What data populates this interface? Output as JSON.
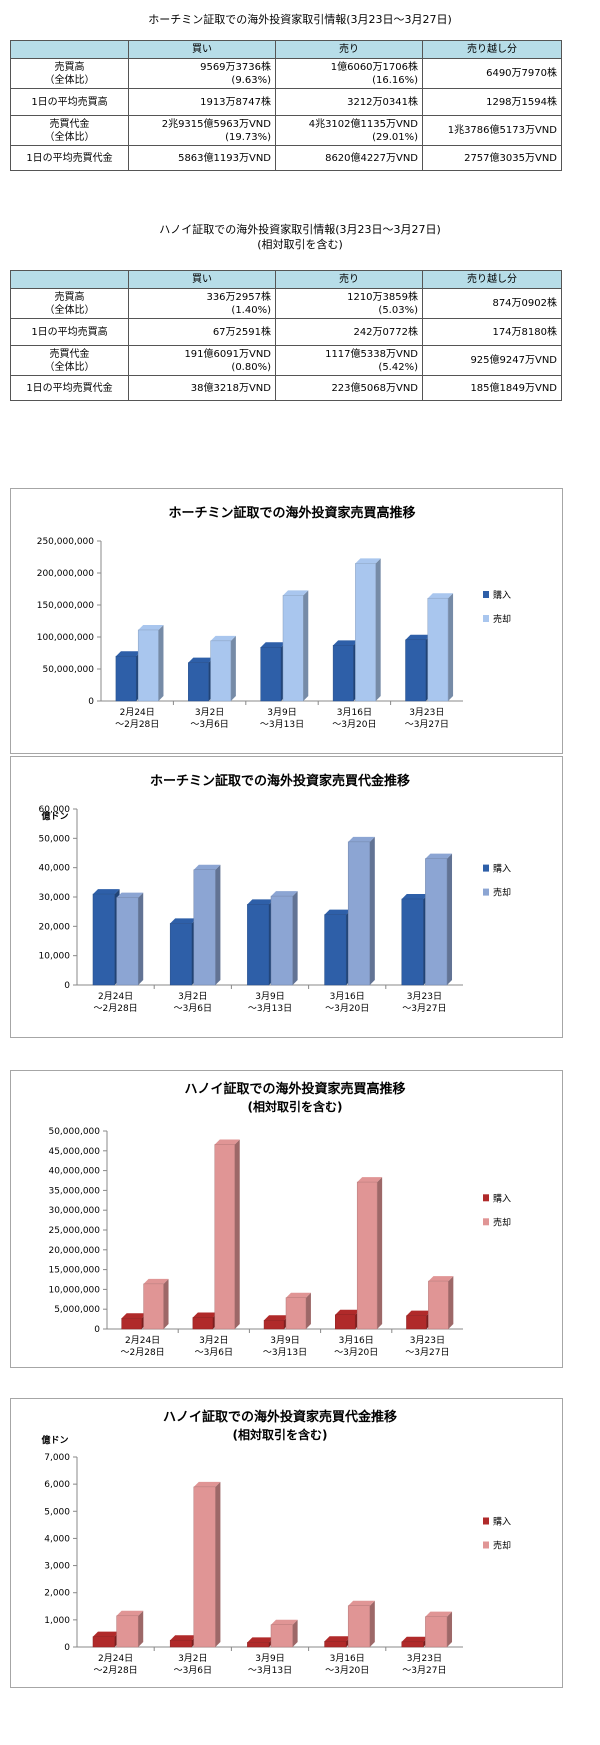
{
  "tables": [
    {
      "title": "ホーチミン証取での海外投資家取引情報(3月23日〜3月27日)",
      "headers": [
        "",
        "買い",
        "売り",
        "売り越し分"
      ],
      "rows": [
        {
          "label": [
            "売買高",
            "（全体比）"
          ],
          "buy": [
            "9569万3736株",
            "(9.63%)"
          ],
          "sell": [
            "1億6060万1706株",
            "(16.16%)"
          ],
          "net": "6490万7970株"
        },
        {
          "label": [
            "1日の平均売買高"
          ],
          "buy": [
            "1913万8747株"
          ],
          "sell": [
            "3212万0341株"
          ],
          "net": "1298万1594株"
        },
        {
          "label": [
            "売買代金",
            "（全体比）"
          ],
          "buy": [
            "2兆9315億5963万VND",
            "(19.73%)"
          ],
          "sell": [
            "4兆3102億1135万VND",
            "(29.01%)"
          ],
          "net": "1兆3786億5173万VND"
        },
        {
          "label": [
            "1日の平均売買代金"
          ],
          "buy": [
            "5863億1193万VND"
          ],
          "sell": [
            "8620億4227万VND"
          ],
          "net": "2757億3035万VND"
        }
      ]
    },
    {
      "title": "ハノイ証取での海外投資家取引情報(3月23日〜3月27日)",
      "subtitle": "(相対取引を含む)",
      "headers": [
        "",
        "買い",
        "売り",
        "売り越し分"
      ],
      "rows": [
        {
          "label": [
            "売買高",
            "（全体比）"
          ],
          "buy": [
            "336万2957株",
            "(1.40%)"
          ],
          "sell": [
            "1210万3859株",
            "(5.03%)"
          ],
          "net": "874万0902株"
        },
        {
          "label": [
            "1日の平均売買高"
          ],
          "buy": [
            "67万2591株"
          ],
          "sell": [
            "242万0772株"
          ],
          "net": "174万8180株"
        },
        {
          "label": [
            "売買代金",
            "（全体比）"
          ],
          "buy": [
            "191億6091万VND",
            "(0.80%)"
          ],
          "sell": [
            "1117億5338万VND",
            "(5.42%)"
          ],
          "net": "925億9247万VND"
        },
        {
          "label": [
            "1日の平均売買代金"
          ],
          "buy": [
            "38億3218万VND"
          ],
          "sell": [
            "223億5068万VND"
          ],
          "net": "185億1849万VND"
        }
      ]
    }
  ],
  "chart_data": [
    {
      "type": "bar",
      "title": "ホーチミン証取での海外投資家売買高推移",
      "subtitle": "",
      "ylabel": "",
      "categories": [
        [
          "2月24日",
          "〜2月28日"
        ],
        [
          "3月2日",
          "〜3月6日"
        ],
        [
          "3月9日",
          "〜3月13日"
        ],
        [
          "3月16日",
          "〜3月20日"
        ],
        [
          "3月23日",
          "〜3月27日"
        ]
      ],
      "series": [
        {
          "name": "購入",
          "values": [
            70000000,
            60000000,
            84000000,
            87000000,
            95693736
          ]
        },
        {
          "name": "売却",
          "values": [
            111000000,
            94000000,
            165000000,
            215000000,
            160601706
          ]
        }
      ],
      "ylim": [
        0,
        250000000
      ],
      "yticks": [
        "0",
        "50,000,000",
        "100,000,000",
        "150,000,000",
        "200,000,000",
        "250,000,000"
      ],
      "colors": [
        "#2e5fa8",
        "#a9c6ee"
      ],
      "legend": "right"
    },
    {
      "type": "bar",
      "title": "ホーチミン証取での海外投資家売買代金推移",
      "subtitle": "",
      "ylabel": "億ドン",
      "categories": [
        [
          "2月24日",
          "〜2月28日"
        ],
        [
          "3月2日",
          "〜3月6日"
        ],
        [
          "3月9日",
          "〜3月13日"
        ],
        [
          "3月16日",
          "〜3月20日"
        ],
        [
          "3月23日",
          "〜3月27日"
        ]
      ],
      "series": [
        {
          "name": "購入",
          "values": [
            31000,
            21000,
            27500,
            24000,
            29316
          ]
        },
        {
          "name": "売却",
          "values": [
            29800,
            39300,
            30300,
            48800,
            43102
          ]
        }
      ],
      "ylim": [
        0,
        60000
      ],
      "yticks": [
        "0",
        "10,000",
        "20,000",
        "30,000",
        "40,000",
        "50,000",
        "60,000"
      ],
      "colors": [
        "#2e5fa8",
        "#8ca5d3"
      ],
      "legend": "right"
    },
    {
      "type": "bar",
      "title": "ハノイ証取での海外投資家売買高推移",
      "subtitle": "(相対取引を含む)",
      "ylabel": "",
      "categories": [
        [
          "2月24日",
          "〜2月28日"
        ],
        [
          "3月2日",
          "〜3月6日"
        ],
        [
          "3月9日",
          "〜3月13日"
        ],
        [
          "3月16日",
          "〜3月20日"
        ],
        [
          "3月23日",
          "〜3月27日"
        ]
      ],
      "series": [
        {
          "name": "購入",
          "values": [
            2700000,
            2900000,
            2200000,
            3600000,
            3362957
          ]
        },
        {
          "name": "売却",
          "values": [
            11400000,
            46600000,
            7900000,
            37100000,
            12103859
          ]
        }
      ],
      "ylim": [
        0,
        50000000
      ],
      "yticks": [
        "0",
        "5,000,000",
        "10,000,000",
        "15,000,000",
        "20,000,000",
        "25,000,000",
        "30,000,000",
        "35,000,000",
        "40,000,000",
        "45,000,000",
        "50,000,000"
      ],
      "colors": [
        "#b02a2a",
        "#e09595"
      ],
      "legend": "right"
    },
    {
      "type": "bar",
      "title": "ハノイ証取での海外投資家売買代金推移",
      "subtitle": "(相対取引を含む)",
      "ylabel": "億ドン",
      "categories": [
        [
          "2月24日",
          "〜2月28日"
        ],
        [
          "3月2日",
          "〜3月6日"
        ],
        [
          "3月9日",
          "〜3月13日"
        ],
        [
          "3月16日",
          "〜3月20日"
        ],
        [
          "3月23日",
          "〜3月27日"
        ]
      ],
      "series": [
        {
          "name": "購入",
          "values": [
            380,
            250,
            170,
            210,
            192
          ]
        },
        {
          "name": "売却",
          "values": [
            1150,
            5900,
            820,
            1520,
            1118
          ]
        }
      ],
      "ylim": [
        0,
        7000
      ],
      "yticks": [
        "0",
        "1,000",
        "2,000",
        "3,000",
        "4,000",
        "5,000",
        "6,000",
        "7,000"
      ],
      "colors": [
        "#b02a2a",
        "#e09595"
      ],
      "legend": "right"
    }
  ]
}
